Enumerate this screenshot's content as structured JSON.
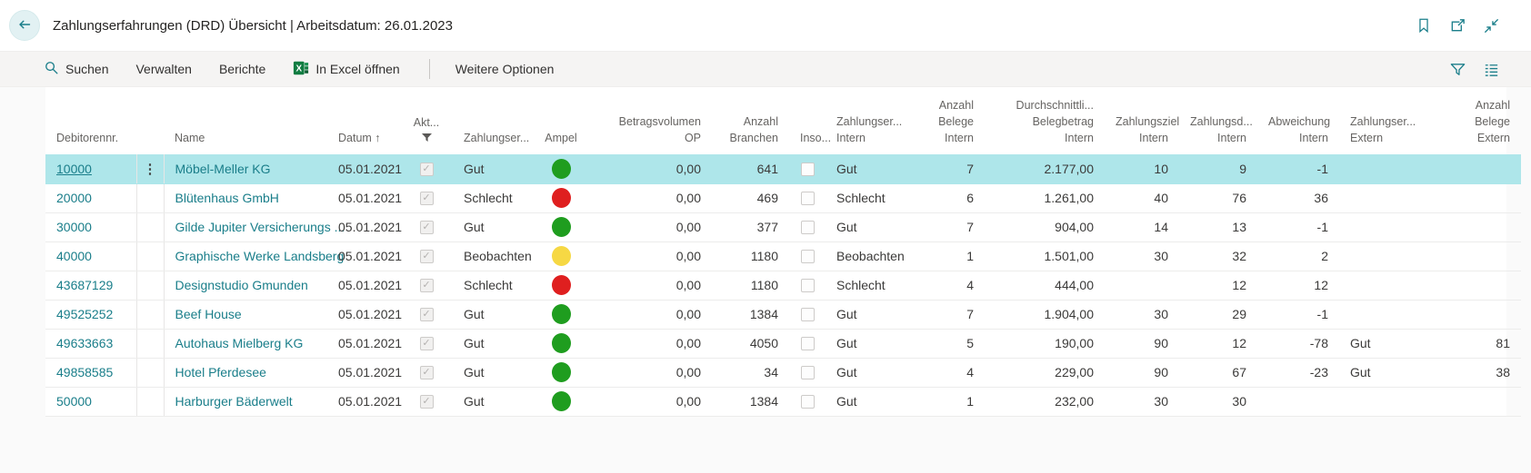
{
  "header": {
    "title": "Zahlungserfahrungen (DRD) Übersicht | Arbeitsdatum: 26.01.2023"
  },
  "toolbar": {
    "search": "Suchen",
    "manage": "Verwalten",
    "reports": "Berichte",
    "open_in_excel": "In Excel öffnen",
    "more_options": "Weitere Optionen"
  },
  "colors": {
    "accent": "#1a7e8a",
    "selection": "#aee6ea",
    "ampel_green": "#1f9d1f",
    "ampel_red": "#df1f1f",
    "ampel_yellow": "#f6d844",
    "excel_green": "#107c41"
  },
  "table": {
    "columns": [
      {
        "key": "nr",
        "label": [
          "Debitorennr."
        ],
        "align": "left",
        "width": 100,
        "type": "link"
      },
      {
        "key": "menu",
        "label": [],
        "align": "center",
        "width": 30,
        "type": "menu"
      },
      {
        "key": "name",
        "label": [
          "Name"
        ],
        "align": "left",
        "width": 180,
        "type": "link"
      },
      {
        "key": "datum",
        "label": [
          "Datum ↑"
        ],
        "align": "left",
        "width": 80,
        "type": "text"
      },
      {
        "key": "akt",
        "label": [
          "Akt..."
        ],
        "align": "center",
        "width": 58,
        "type": "checkbox_checked",
        "filter_icon": true
      },
      {
        "key": "zser",
        "label": [
          "Zahlungser..."
        ],
        "align": "left",
        "width": 88,
        "type": "text"
      },
      {
        "key": "ampel",
        "label": [
          "Ampel"
        ],
        "align": "center",
        "width": 62,
        "type": "traffic"
      },
      {
        "key": "betrag",
        "label": [
          "Betragsvolumen",
          "OP"
        ],
        "align": "right",
        "width": 135,
        "type": "text"
      },
      {
        "key": "branchen",
        "label": [
          "Anzahl",
          "Branchen"
        ],
        "align": "right",
        "width": 85,
        "type": "text"
      },
      {
        "key": "inso",
        "label": [
          "Inso..."
        ],
        "align": "center",
        "width": 40,
        "type": "checkbox_empty"
      },
      {
        "key": "zser_intern",
        "label": [
          "Zahlungser...",
          "Intern"
        ],
        "align": "left",
        "width": 95,
        "type": "text"
      },
      {
        "key": "belege_intern",
        "label": [
          "Anzahl",
          "Belege",
          "Intern"
        ],
        "align": "right",
        "width": 80,
        "type": "text"
      },
      {
        "key": "belegbetrag",
        "label": [
          "Durchschnittli...",
          "Belegbetrag",
          "Intern"
        ],
        "align": "right",
        "width": 132,
        "type": "text"
      },
      {
        "key": "ziel_intern",
        "label": [
          "Zahlungsziel",
          "Intern"
        ],
        "align": "right",
        "width": 82,
        "type": "text"
      },
      {
        "key": "zd_intern",
        "label": [
          "Zahlungsd...",
          "Intern"
        ],
        "align": "right",
        "width": 86,
        "type": "text"
      },
      {
        "key": "abw_intern",
        "label": [
          "Abweichung",
          "Intern"
        ],
        "align": "right",
        "width": 90,
        "type": "text"
      },
      {
        "key": "zser_extern",
        "label": [
          "Zahlungser...",
          "Extern"
        ],
        "align": "left",
        "width": 85,
        "type": "text"
      },
      {
        "key": "belege_extern",
        "label": [
          "Anzahl",
          "Belege",
          "Extern"
        ],
        "align": "right",
        "width": 115,
        "type": "text"
      }
    ],
    "rows": [
      {
        "selected": true,
        "nr": "10000",
        "name": "Möbel-Meller KG",
        "datum": "05.01.2021",
        "akt": true,
        "zser": "Gut",
        "ampel": "green",
        "betrag": "0,00",
        "branchen": "641",
        "inso": false,
        "zser_intern": "Gut",
        "belege_intern": "7",
        "belegbetrag": "2.177,00",
        "ziel_intern": "10",
        "zd_intern": "9",
        "abw_intern": "-1",
        "zser_extern": "",
        "belege_extern": ""
      },
      {
        "selected": false,
        "nr": "20000",
        "name": "Blütenhaus GmbH",
        "datum": "05.01.2021",
        "akt": true,
        "zser": "Schlecht",
        "ampel": "red",
        "betrag": "0,00",
        "branchen": "469",
        "inso": false,
        "zser_intern": "Schlecht",
        "belege_intern": "6",
        "belegbetrag": "1.261,00",
        "ziel_intern": "40",
        "zd_intern": "76",
        "abw_intern": "36",
        "zser_extern": "",
        "belege_extern": ""
      },
      {
        "selected": false,
        "nr": "30000",
        "name": "Gilde Jupiter Versicherungs ...",
        "datum": "05.01.2021",
        "akt": true,
        "zser": "Gut",
        "ampel": "green",
        "betrag": "0,00",
        "branchen": "377",
        "inso": false,
        "zser_intern": "Gut",
        "belege_intern": "7",
        "belegbetrag": "904,00",
        "ziel_intern": "14",
        "zd_intern": "13",
        "abw_intern": "-1",
        "zser_extern": "",
        "belege_extern": ""
      },
      {
        "selected": false,
        "nr": "40000",
        "name": "Graphische Werke Landsberg",
        "datum": "05.01.2021",
        "akt": true,
        "zser": "Beobachten",
        "ampel": "yellow",
        "betrag": "0,00",
        "branchen": "1180",
        "inso": false,
        "zser_intern": "Beobachten",
        "belege_intern": "1",
        "belegbetrag": "1.501,00",
        "ziel_intern": "30",
        "zd_intern": "32",
        "abw_intern": "2",
        "zser_extern": "",
        "belege_extern": ""
      },
      {
        "selected": false,
        "nr": "43687129",
        "name": "Designstudio Gmunden",
        "datum": "05.01.2021",
        "akt": true,
        "zser": "Schlecht",
        "ampel": "red",
        "betrag": "0,00",
        "branchen": "1180",
        "inso": false,
        "zser_intern": "Schlecht",
        "belege_intern": "4",
        "belegbetrag": "444,00",
        "ziel_intern": "",
        "zd_intern": "12",
        "abw_intern": "12",
        "zser_extern": "",
        "belege_extern": ""
      },
      {
        "selected": false,
        "nr": "49525252",
        "name": "Beef House",
        "datum": "05.01.2021",
        "akt": true,
        "zser": "Gut",
        "ampel": "green",
        "betrag": "0,00",
        "branchen": "1384",
        "inso": false,
        "zser_intern": "Gut",
        "belege_intern": "7",
        "belegbetrag": "1.904,00",
        "ziel_intern": "30",
        "zd_intern": "29",
        "abw_intern": "-1",
        "zser_extern": "",
        "belege_extern": ""
      },
      {
        "selected": false,
        "nr": "49633663",
        "name": "Autohaus Mielberg KG",
        "datum": "05.01.2021",
        "akt": true,
        "zser": "Gut",
        "ampel": "green",
        "betrag": "0,00",
        "branchen": "4050",
        "inso": false,
        "zser_intern": "Gut",
        "belege_intern": "5",
        "belegbetrag": "190,00",
        "ziel_intern": "90",
        "zd_intern": "12",
        "abw_intern": "-78",
        "zser_extern": "Gut",
        "belege_extern": "81"
      },
      {
        "selected": false,
        "nr": "49858585",
        "name": "Hotel Pferdesee",
        "datum": "05.01.2021",
        "akt": true,
        "zser": "Gut",
        "ampel": "green",
        "betrag": "0,00",
        "branchen": "34",
        "inso": false,
        "zser_intern": "Gut",
        "belege_intern": "4",
        "belegbetrag": "229,00",
        "ziel_intern": "90",
        "zd_intern": "67",
        "abw_intern": "-23",
        "zser_extern": "Gut",
        "belege_extern": "38"
      },
      {
        "selected": false,
        "nr": "50000",
        "name": "Harburger Bäderwelt",
        "datum": "05.01.2021",
        "akt": true,
        "zser": "Gut",
        "ampel": "green",
        "betrag": "0,00",
        "branchen": "1384",
        "inso": false,
        "zser_intern": "Gut",
        "belege_intern": "1",
        "belegbetrag": "232,00",
        "ziel_intern": "30",
        "zd_intern": "30",
        "abw_intern": "",
        "zser_extern": "",
        "belege_extern": ""
      }
    ]
  }
}
